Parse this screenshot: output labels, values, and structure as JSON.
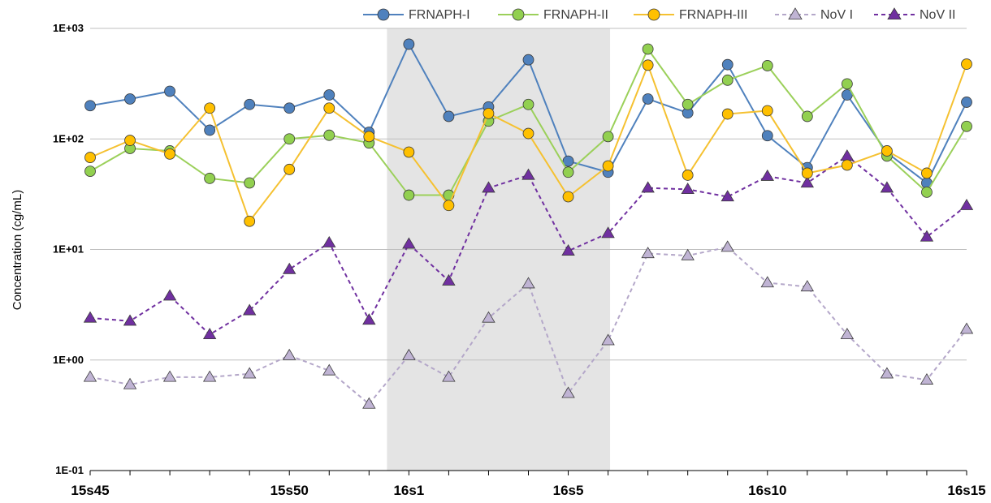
{
  "chart_data": {
    "type": "line",
    "title": "",
    "xlabel": "",
    "ylabel": "Concentration (cg/mL)",
    "y_scale": "log",
    "ylim": [
      0.1,
      1000
    ],
    "y_ticks": [
      {
        "value": 0.1,
        "label": "1E-01"
      },
      {
        "value": 1,
        "label": "1E+00"
      },
      {
        "value": 10,
        "label": "1E+01"
      },
      {
        "value": 100,
        "label": "1E+02"
      },
      {
        "value": 1000,
        "label": "1E+03"
      }
    ],
    "x_count": 23,
    "x_tick_labels": [
      {
        "index": 0,
        "label": "15s45"
      },
      {
        "index": 5,
        "label": "15s50"
      },
      {
        "index": 8,
        "label": "16s1"
      },
      {
        "index": 12,
        "label": "16s5"
      },
      {
        "index": 17,
        "label": "16s10"
      },
      {
        "index": 22,
        "label": "16s15"
      }
    ],
    "shaded_region": {
      "from_index": 7.45,
      "to_index": 13.05,
      "color": "#e4e4e4"
    },
    "grid": true,
    "legend_position": "top-right",
    "series": [
      {
        "name": "FRNAPH-I",
        "color": "#4f81bd",
        "fill": "#4f81bd",
        "line_style": "solid",
        "marker": "circle",
        "values": [
          200,
          230,
          270,
          120,
          205,
          190,
          250,
          115,
          720,
          160,
          195,
          520,
          63,
          50,
          230,
          172,
          470,
          107,
          55,
          250,
          75,
          40,
          215
        ]
      },
      {
        "name": "FRNAPH-II",
        "color": "#9bd05a",
        "fill": "#92d050",
        "line_style": "solid",
        "marker": "circle",
        "values": [
          51,
          82,
          78,
          44,
          40,
          100,
          108,
          92,
          31,
          31,
          145,
          205,
          50,
          105,
          650,
          205,
          340,
          460,
          160,
          315,
          70,
          33,
          130
        ]
      },
      {
        "name": "FRNAPH-III",
        "color": "#f5c131",
        "fill": "#ffc000",
        "line_style": "solid",
        "marker": "circle",
        "values": [
          68,
          97,
          73,
          190,
          18,
          53,
          190,
          105,
          76,
          25,
          170,
          112,
          30,
          57,
          465,
          47,
          168,
          180,
          49,
          58,
          78,
          49,
          475
        ]
      },
      {
        "name": "NoV I",
        "color": "#b4a7c9",
        "fill": "#c0b4d4",
        "line_style": "dashed",
        "marker": "triangle",
        "values": [
          0.7,
          0.6,
          0.7,
          0.7,
          0.75,
          1.1,
          0.8,
          0.4,
          1.1,
          0.7,
          2.4,
          4.9,
          0.5,
          1.5,
          9.2,
          8.8,
          10.5,
          5.0,
          4.6,
          1.7,
          0.75,
          0.66,
          1.9
        ]
      },
      {
        "name": "NoV II",
        "color": "#7030a0",
        "fill": "#7030a0",
        "line_style": "dashed",
        "marker": "triangle",
        "values": [
          2.4,
          2.25,
          3.8,
          1.7,
          2.8,
          6.6,
          11.5,
          2.3,
          11.2,
          5.2,
          36,
          47,
          9.7,
          14,
          36,
          35,
          30,
          46,
          40,
          70,
          36,
          13,
          25
        ]
      }
    ]
  }
}
